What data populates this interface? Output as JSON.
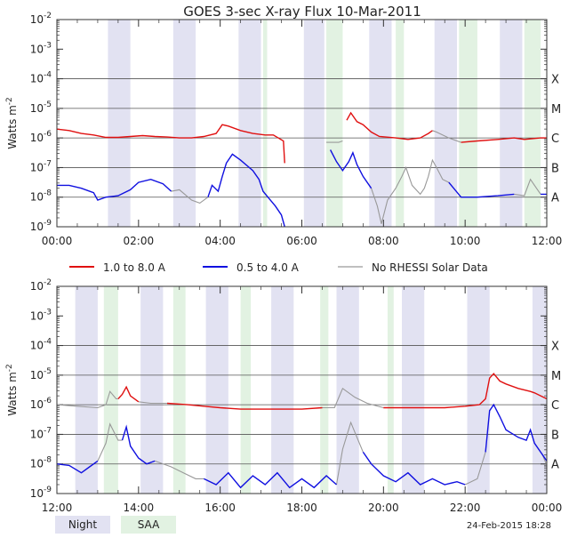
{
  "chart_data": {
    "type": "line",
    "title": "GOES 3-sec X-ray Flux   10-Mar-2011",
    "ylabel": "Watts m",
    "ylabel_sup": "-2",
    "ylim_exp": [
      -9,
      -2
    ],
    "y_ticks": [
      {
        "base": "10",
        "exp": "-9"
      },
      {
        "base": "10",
        "exp": "-8"
      },
      {
        "base": "10",
        "exp": "-7"
      },
      {
        "base": "10",
        "exp": "-6"
      },
      {
        "base": "10",
        "exp": "-5"
      },
      {
        "base": "10",
        "exp": "-4"
      },
      {
        "base": "10",
        "exp": "-3"
      },
      {
        "base": "10",
        "exp": "-2"
      }
    ],
    "flare_classes": [
      {
        "label": "A",
        "exp": -8
      },
      {
        "label": "B",
        "exp": -7
      },
      {
        "label": "C",
        "exp": -6
      },
      {
        "label": "M",
        "exp": -5
      },
      {
        "label": "X",
        "exp": -4
      }
    ],
    "legend": [
      {
        "label": "1.0 to 8.0 A",
        "color": "#e01010"
      },
      {
        "label": "0.5 to 4.0 A",
        "color": "#1010e0"
      },
      {
        "label": "No RHESSI Solar Data",
        "color": "#999999"
      }
    ],
    "bottom_legend": {
      "night": "Night",
      "saa": "SAA"
    },
    "footer": "24-Feb-2015 18:28",
    "colors": {
      "red": "#e01010",
      "blue": "#1010e0",
      "gray": "#999999",
      "night": "#e2e2f2",
      "saa": "#e2f2e2"
    },
    "panels": [
      {
        "name": "top",
        "x_range_hours": [
          0,
          12
        ],
        "x_ticks": [
          "00:00",
          "02:00",
          "04:00",
          "06:00",
          "08:00",
          "10:00",
          "12:00"
        ],
        "night": [
          [
            1.25,
            1.8
          ],
          [
            2.85,
            3.4
          ],
          [
            4.45,
            5.0
          ],
          [
            6.05,
            6.55
          ],
          [
            7.65,
            8.2
          ],
          [
            9.25,
            9.8
          ],
          [
            10.85,
            11.4
          ]
        ],
        "saa": [
          [
            5.05,
            5.15
          ],
          [
            6.6,
            7.0
          ],
          [
            8.3,
            8.5
          ],
          [
            9.85,
            10.3
          ],
          [
            11.45,
            11.85
          ]
        ],
        "long": [
          [
            0.0,
            -5.7
          ],
          [
            0.3,
            -5.75
          ],
          [
            0.6,
            -5.85
          ],
          [
            0.9,
            -5.9
          ],
          [
            1.2,
            -5.98
          ],
          [
            1.5,
            -5.98
          ],
          [
            1.8,
            -5.95
          ],
          [
            2.1,
            -5.92
          ],
          [
            2.4,
            -5.95
          ],
          [
            2.7,
            -5.97
          ],
          [
            3.0,
            -6.0
          ],
          [
            3.3,
            -6.0
          ],
          [
            3.6,
            -5.95
          ],
          [
            3.9,
            -5.85
          ],
          [
            4.05,
            -5.55
          ],
          [
            4.2,
            -5.6
          ],
          [
            4.5,
            -5.75
          ],
          [
            4.8,
            -5.85
          ],
          [
            5.1,
            -5.9
          ],
          [
            5.3,
            -5.9
          ],
          [
            5.55,
            -6.1
          ],
          [
            5.58,
            -6.85
          ],
          [
            null,
            null
          ],
          [
            7.1,
            -5.4
          ],
          [
            7.2,
            -5.15
          ],
          [
            7.35,
            -5.45
          ],
          [
            7.5,
            -5.55
          ],
          [
            7.7,
            -5.8
          ],
          [
            7.9,
            -5.95
          ],
          [
            8.3,
            -6.0
          ],
          [
            8.6,
            -6.05
          ],
          [
            8.9,
            -6.0
          ],
          [
            9.1,
            -5.85
          ],
          [
            9.2,
            -5.75
          ],
          [
            null,
            null
          ],
          [
            9.9,
            -6.15
          ],
          [
            10.3,
            -6.1
          ],
          [
            10.8,
            -6.05
          ],
          [
            11.2,
            -6.0
          ],
          [
            11.45,
            -6.05
          ],
          [
            11.85,
            -6.0
          ],
          [
            12.0,
            -6.0
          ]
        ],
        "short": [
          [
            0.0,
            -7.6
          ],
          [
            0.3,
            -7.6
          ],
          [
            0.6,
            -7.7
          ],
          [
            0.9,
            -7.85
          ],
          [
            1.0,
            -8.1
          ],
          [
            1.2,
            -8.0
          ],
          [
            1.5,
            -7.95
          ],
          [
            1.8,
            -7.75
          ],
          [
            2.0,
            -7.5
          ],
          [
            2.3,
            -7.4
          ],
          [
            2.6,
            -7.55
          ],
          [
            2.8,
            -7.8
          ],
          [
            null,
            null
          ],
          [
            3.7,
            -8.0
          ],
          [
            3.8,
            -7.6
          ],
          [
            3.95,
            -7.8
          ],
          [
            4.05,
            -7.3
          ],
          [
            4.15,
            -6.85
          ],
          [
            4.3,
            -6.55
          ],
          [
            4.5,
            -6.75
          ],
          [
            4.8,
            -7.1
          ],
          [
            4.95,
            -7.4
          ],
          [
            5.05,
            -7.8
          ],
          [
            5.2,
            -8.05
          ],
          [
            5.35,
            -8.3
          ],
          [
            5.5,
            -8.6
          ],
          [
            5.58,
            -9.0
          ],
          [
            null,
            null
          ],
          [
            6.7,
            -6.4
          ],
          [
            6.85,
            -6.8
          ],
          [
            7.0,
            -7.1
          ],
          [
            7.15,
            -6.8
          ],
          [
            7.25,
            -6.5
          ],
          [
            7.35,
            -6.9
          ],
          [
            7.5,
            -7.3
          ],
          [
            7.7,
            -7.7
          ],
          [
            null,
            null
          ],
          [
            9.6,
            -7.5
          ],
          [
            9.9,
            -8.0
          ],
          [
            10.3,
            -8.0
          ],
          [
            10.8,
            -7.95
          ],
          [
            11.2,
            -7.9
          ],
          [
            null,
            null
          ],
          [
            11.85,
            -7.9
          ],
          [
            12.0,
            -7.9
          ]
        ],
        "gray": [
          [
            2.8,
            -7.8
          ],
          [
            3.0,
            -7.75
          ],
          [
            3.3,
            -8.1
          ],
          [
            3.5,
            -8.2
          ],
          [
            3.7,
            -8.0
          ],
          [
            null,
            null
          ],
          [
            6.6,
            -6.15
          ],
          [
            6.9,
            -6.15
          ],
          [
            7.0,
            -6.1
          ],
          [
            null,
            null
          ],
          [
            7.7,
            -7.7
          ],
          [
            7.85,
            -8.3
          ],
          [
            7.95,
            -8.9
          ],
          [
            8.1,
            -8.1
          ],
          [
            8.3,
            -7.7
          ],
          [
            8.45,
            -7.3
          ],
          [
            8.55,
            -7.0
          ],
          [
            8.7,
            -7.6
          ],
          [
            8.9,
            -7.9
          ],
          [
            9.0,
            -7.7
          ],
          [
            9.1,
            -7.3
          ],
          [
            9.2,
            -6.75
          ],
          [
            9.3,
            -7.0
          ],
          [
            9.45,
            -7.4
          ],
          [
            9.6,
            -7.5
          ],
          [
            null,
            null
          ],
          [
            9.2,
            -5.75
          ],
          [
            9.3,
            -5.8
          ],
          [
            9.6,
            -6.0
          ],
          [
            9.9,
            -6.15
          ],
          [
            null,
            null
          ],
          [
            11.2,
            -7.9
          ],
          [
            11.45,
            -7.95
          ],
          [
            11.6,
            -7.4
          ],
          [
            11.7,
            -7.6
          ],
          [
            11.85,
            -7.9
          ]
        ]
      },
      {
        "name": "bottom",
        "x_range_hours": [
          12,
          24
        ],
        "x_ticks": [
          "12:00",
          "14:00",
          "16:00",
          "18:00",
          "20:00",
          "22:00",
          "00:00"
        ],
        "night": [
          [
            12.45,
            13.0
          ],
          [
            14.05,
            14.6
          ],
          [
            15.65,
            16.2
          ],
          [
            17.25,
            17.8
          ],
          [
            18.85,
            19.4
          ],
          [
            20.45,
            21.0
          ],
          [
            22.05,
            22.6
          ],
          [
            23.65,
            24.0
          ]
        ],
        "saa": [
          [
            13.15,
            13.5
          ],
          [
            14.85,
            15.15
          ],
          [
            16.5,
            16.75
          ],
          [
            18.45,
            18.65
          ],
          [
            20.1,
            20.25
          ]
        ],
        "long": [
          [
            13.5,
            -5.8
          ],
          [
            13.6,
            -5.65
          ],
          [
            13.7,
            -5.4
          ],
          [
            13.8,
            -5.7
          ],
          [
            14.0,
            -5.9
          ],
          [
            null,
            null
          ],
          [
            14.7,
            -5.95
          ],
          [
            15.2,
            -6.0
          ],
          [
            15.6,
            -6.05
          ],
          [
            16.0,
            -6.1
          ],
          [
            16.5,
            -6.15
          ],
          [
            17.0,
            -6.15
          ],
          [
            17.5,
            -6.15
          ],
          [
            18.0,
            -6.15
          ],
          [
            18.5,
            -6.1
          ],
          [
            null,
            null
          ],
          [
            20.0,
            -6.1
          ],
          [
            20.5,
            -6.1
          ],
          [
            21.0,
            -6.1
          ],
          [
            21.5,
            -6.1
          ],
          [
            22.0,
            -6.05
          ],
          [
            22.35,
            -6.0
          ],
          [
            22.5,
            -5.8
          ],
          [
            22.6,
            -5.1
          ],
          [
            22.7,
            -4.95
          ],
          [
            22.85,
            -5.2
          ],
          [
            23.0,
            -5.3
          ],
          [
            23.3,
            -5.45
          ],
          [
            23.6,
            -5.55
          ],
          [
            23.7,
            -5.6
          ],
          [
            24.0,
            -5.8
          ]
        ],
        "short": [
          [
            12.0,
            -8.0
          ],
          [
            12.3,
            -8.05
          ],
          [
            12.6,
            -8.3
          ],
          [
            12.8,
            -8.1
          ],
          [
            13.0,
            -7.9
          ],
          [
            null,
            null
          ],
          [
            13.6,
            -7.2
          ],
          [
            13.7,
            -6.75
          ],
          [
            13.8,
            -7.4
          ],
          [
            14.0,
            -7.8
          ],
          [
            14.2,
            -8.0
          ],
          [
            14.4,
            -7.9
          ],
          [
            null,
            null
          ],
          [
            15.6,
            -8.5
          ],
          [
            15.9,
            -8.7
          ],
          [
            16.2,
            -8.3
          ],
          [
            16.5,
            -8.8
          ],
          [
            16.8,
            -8.4
          ],
          [
            17.1,
            -8.7
          ],
          [
            17.4,
            -8.3
          ],
          [
            17.7,
            -8.8
          ],
          [
            18.0,
            -8.5
          ],
          [
            18.3,
            -8.8
          ],
          [
            18.6,
            -8.4
          ],
          [
            18.85,
            -8.7
          ],
          [
            null,
            null
          ],
          [
            19.5,
            -7.6
          ],
          [
            19.7,
            -8.0
          ],
          [
            20.0,
            -8.4
          ],
          [
            20.3,
            -8.6
          ],
          [
            20.6,
            -8.3
          ],
          [
            20.9,
            -8.7
          ],
          [
            21.2,
            -8.5
          ],
          [
            21.5,
            -8.7
          ],
          [
            21.8,
            -8.6
          ],
          [
            22.0,
            -8.7
          ],
          [
            null,
            null
          ],
          [
            22.5,
            -7.6
          ],
          [
            22.6,
            -6.2
          ],
          [
            22.7,
            -6.0
          ],
          [
            22.85,
            -6.4
          ],
          [
            23.0,
            -6.85
          ],
          [
            23.3,
            -7.1
          ],
          [
            23.5,
            -7.2
          ],
          [
            23.6,
            -6.85
          ],
          [
            23.7,
            -7.3
          ],
          [
            23.9,
            -7.7
          ],
          [
            24.0,
            -7.9
          ]
        ],
        "gray": [
          [
            12.0,
            -6.0
          ],
          [
            12.5,
            -6.05
          ],
          [
            13.0,
            -6.1
          ],
          [
            13.2,
            -6.0
          ],
          [
            13.3,
            -5.55
          ],
          [
            13.45,
            -5.8
          ],
          [
            13.5,
            -5.8
          ],
          [
            null,
            null
          ],
          [
            14.0,
            -5.9
          ],
          [
            14.3,
            -5.95
          ],
          [
            14.7,
            -5.95
          ],
          [
            null,
            null
          ],
          [
            18.5,
            -6.1
          ],
          [
            18.8,
            -6.1
          ],
          [
            19.0,
            -5.45
          ],
          [
            19.3,
            -5.75
          ],
          [
            19.6,
            -5.95
          ],
          [
            20.0,
            -6.1
          ],
          [
            null,
            null
          ],
          [
            13.0,
            -7.9
          ],
          [
            13.2,
            -7.3
          ],
          [
            13.3,
            -6.65
          ],
          [
            13.5,
            -7.2
          ],
          [
            13.6,
            -7.2
          ],
          [
            null,
            null
          ],
          [
            14.4,
            -7.9
          ],
          [
            14.8,
            -8.1
          ],
          [
            15.1,
            -8.3
          ],
          [
            15.4,
            -8.5
          ],
          [
            15.6,
            -8.5
          ],
          [
            null,
            null
          ],
          [
            18.85,
            -8.7
          ],
          [
            19.0,
            -7.5
          ],
          [
            19.2,
            -6.6
          ],
          [
            19.35,
            -7.1
          ],
          [
            19.5,
            -7.6
          ],
          [
            null,
            null
          ],
          [
            22.0,
            -8.7
          ],
          [
            22.3,
            -8.5
          ],
          [
            22.5,
            -7.6
          ],
          [
            null,
            null
          ],
          [
            24.0,
            -5.8
          ],
          [
            null,
            null
          ],
          [
            23.9,
            -7.7
          ],
          [
            24.0,
            -8.05
          ]
        ]
      }
    ]
  }
}
